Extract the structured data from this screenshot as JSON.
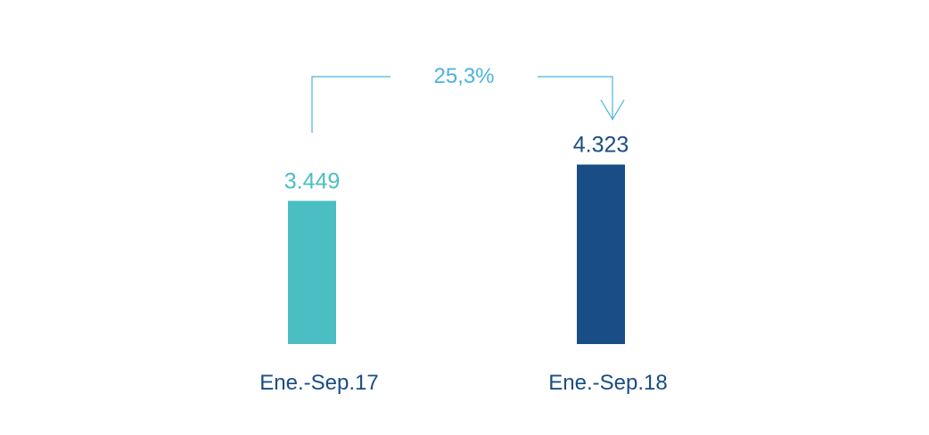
{
  "chart_data": {
    "type": "bar",
    "categories": [
      "Ene.-Sep.17",
      "Ene.-Sep.18"
    ],
    "values": [
      3449,
      4323
    ],
    "value_labels": [
      "3.449",
      "4.323"
    ],
    "bar_colors": [
      "#4bbec4",
      "#194d85"
    ],
    "label_colors": [
      "#4bbec4",
      "#194d85"
    ],
    "category_color": "#194d85",
    "growth": {
      "label": "25,3%",
      "color": "#4ab4dc",
      "from": "Ene.-Sep.17",
      "to": "Ene.-Sep.18"
    },
    "ylim": [
      0,
      4400
    ],
    "grid": false,
    "legend": "none"
  }
}
